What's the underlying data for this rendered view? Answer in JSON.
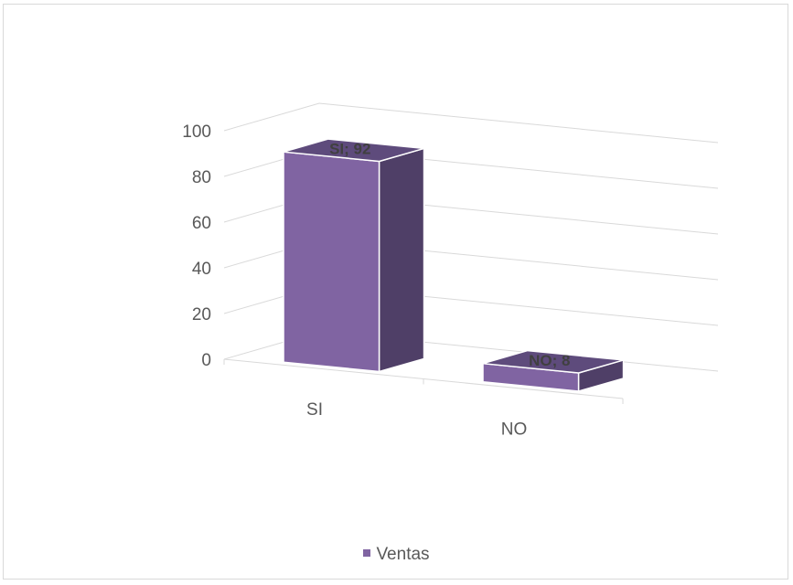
{
  "chart_data": {
    "type": "bar",
    "style": "3d-column",
    "categories": [
      "SI",
      "NO"
    ],
    "series": [
      {
        "name": "Ventas",
        "values": [
          92,
          8
        ],
        "color": "#8064a2"
      }
    ],
    "data_labels": [
      "SI; 92",
      "NO; 8"
    ],
    "y_ticks": [
      "0",
      "20",
      "40",
      "60",
      "80",
      "100"
    ],
    "ylim": [
      0,
      100
    ],
    "grid": true,
    "legend_position": "bottom"
  }
}
